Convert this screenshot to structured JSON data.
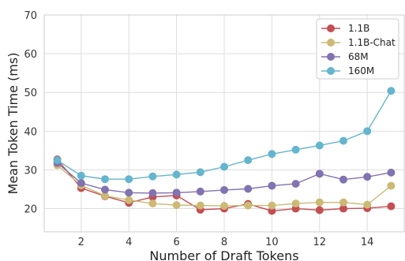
{
  "chart_data": {
    "type": "line",
    "title": "",
    "xlabel": "Number of Draft Tokens",
    "ylabel": "Mean Token Time (ms)",
    "xlim": [
      0.45,
      15.55
    ],
    "ylim": [
      14,
      70
    ],
    "xticks": [
      2,
      4,
      6,
      8,
      10,
      12,
      14
    ],
    "yticks": [
      20,
      30,
      40,
      50,
      60,
      70
    ],
    "grid": true,
    "legend_position": "top-right",
    "x": [
      1,
      2,
      3,
      4,
      5,
      6,
      7,
      8,
      9,
      10,
      11,
      12,
      13,
      14,
      15
    ],
    "series": [
      {
        "name": "1.1B",
        "color": "#c44e52",
        "values": [
          32.7,
          25.3,
          23.2,
          21.5,
          23.0,
          23.4,
          19.7,
          20.0,
          21.2,
          19.4,
          20.0,
          19.6,
          20.0,
          20.1,
          20.6
        ]
      },
      {
        "name": "1.1B-Chat",
        "color": "#ccb974",
        "values": [
          31.2,
          26.0,
          23.3,
          22.2,
          21.3,
          20.9,
          20.8,
          20.7,
          20.8,
          20.8,
          21.3,
          21.6,
          21.6,
          21.0,
          25.9
        ]
      },
      {
        "name": "68M",
        "color": "#8172b2",
        "values": [
          31.8,
          26.6,
          24.9,
          24.1,
          24.0,
          24.1,
          24.4,
          24.8,
          25.1,
          25.9,
          26.4,
          29.0,
          27.5,
          28.2,
          29.3
        ]
      },
      {
        "name": "160M",
        "color": "#64b5cd",
        "values": [
          32.5,
          28.5,
          27.6,
          27.6,
          28.3,
          28.8,
          29.4,
          30.8,
          32.5,
          34.1,
          35.2,
          36.3,
          37.5,
          40.0,
          50.4
        ]
      }
    ]
  }
}
